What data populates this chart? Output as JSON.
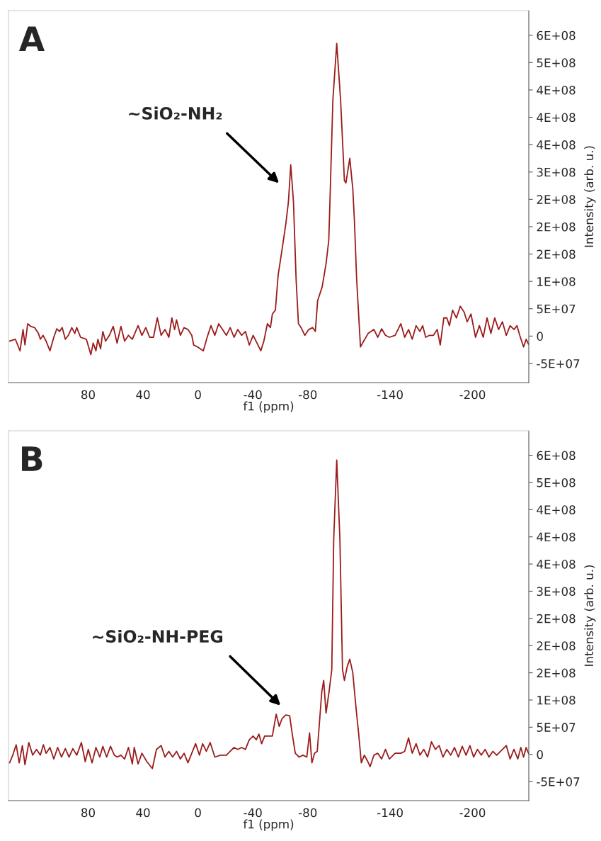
{
  "chart_data": [
    {
      "type": "line",
      "title": "A",
      "xlabel": "f1 (ppm)",
      "ylabel": "Intensity (arb. u.)",
      "grid": false,
      "xlim": [
        138,
        -241
      ],
      "xticks": [
        80,
        40,
        0,
        -40,
        -80,
        -140,
        -200
      ],
      "ylim": [
        -85000000.0,
        595000000.0
      ],
      "yticks": [
        {
          "value": -50000000.0,
          "label": "-5E+07"
        },
        0,
        {
          "value": 50000000.0,
          "label": "5E+07"
        },
        {
          "value": 100000000.0,
          "label": "1E+08"
        },
        {
          "value": 150000000.0,
          "label": "2E+08"
        },
        {
          "value": 200000000.0,
          "label": "2E+08"
        },
        {
          "value": 250000000.0,
          "label": "2E+08"
        },
        {
          "value": 300000000.0,
          "label": "3E+08"
        },
        {
          "value": 350000000.0,
          "label": "4E+08"
        },
        {
          "value": 400000000.0,
          "label": "4E+08"
        },
        {
          "value": 450000000.0,
          "label": "4E+08"
        },
        {
          "value": 500000000.0,
          "label": "5E+08"
        },
        {
          "value": 550000000.0,
          "label": "6E+08"
        }
      ],
      "annotations": [
        "~SiO₂-NH₂"
      ],
      "series": [
        {
          "color": "#9b1c1c",
          "x": [
            137.2,
            133,
            129.6,
            127.4,
            126,
            124,
            121.8,
            119,
            116.2,
            114.8,
            112.8,
            110.6,
            107.8,
            105,
            102.8,
            100.8,
            98.9,
            96.6,
            94.4,
            91.9,
            89.7,
            88.3,
            85.5,
            81.3,
            78,
            76.3,
            74.3,
            72.9,
            70.9,
            69.3,
            67.3,
            64.5,
            61.7,
            58.9,
            56.1,
            53.4,
            50.6,
            47.8,
            43.6,
            40.8,
            38,
            35.2,
            32.4,
            29.6,
            26.8,
            24,
            21.2,
            19,
            17,
            15.6,
            12.8,
            10.1,
            7.3,
            4.5,
            3.1,
            0.3,
            -1.7,
            -3.9,
            -6.7,
            -9.5,
            -12.3,
            -15.1,
            -17.9,
            -20.7,
            -23.5,
            -26.3,
            -29,
            -31.8,
            -34.6,
            -37.4,
            -40.2,
            -43,
            -45.8,
            -48,
            -50.6,
            -52.8,
            -54.2,
            -56.4,
            -58.4,
            -61.2,
            -64,
            -65.9,
            -67.6,
            -69.6,
            -71.5,
            -73.2,
            -75.1,
            -77.9,
            -80.7,
            -83.5,
            -85.5,
            -87.2,
            -90.5,
            -93.3,
            -95.3,
            -96.1,
            -98.3,
            -101.1,
            -103.9,
            -106.7,
            -107.8,
            -110.6,
            -112.8,
            -114,
            -115.6,
            -118.4,
            -120.7,
            -124,
            -128.2,
            -131,
            -133.8,
            -136.6,
            -139.4,
            -143.6,
            -147.8,
            -150.6,
            -153.4,
            -156.1,
            -158.9,
            -161.7,
            -163.7,
            -165.9,
            -168.7,
            -171.5,
            -174.3,
            -176.5,
            -179.1,
            -181.3,
            -183.2,
            -185.5,
            -188.3,
            -191.1,
            -193.9,
            -196.1,
            -198.9,
            -202.2,
            -205,
            -207.8,
            -210.6,
            -213.4,
            -216.2,
            -219,
            -221.8,
            -224.6,
            -227.4,
            -230.2,
            -232.4,
            -234.4,
            -237.2,
            -239.1,
            -240.8
          ],
          "values": [
            -9200000.0,
            -5700000.0,
            -26900000.0,
            12000000.0,
            -16300000.0,
            22600000.0,
            17700000.0,
            15600000.0,
            4900000.0,
            -5700000.0,
            1400000.0,
            -9200000.0,
            -26900000.0,
            -2100000.0,
            13400000.0,
            8500000.0,
            15600000.0,
            -5700000.0,
            1400000.0,
            15600000.0,
            4900000.0,
            15600000.0,
            -2100000.0,
            -5700000.0,
            -33900000.0,
            -12700000.0,
            -26900000.0,
            -5700000.0,
            -23300000.0,
            8500000.0,
            -9200000.0,
            1400000.0,
            17700000.0,
            -12700000.0,
            17700000.0,
            -9200000.0,
            1400000.0,
            -5700000.0,
            19100000.0,
            1400000.0,
            15600000.0,
            -2100000.0,
            -2100000.0,
            33200000.0,
            1400000.0,
            12000000.0,
            -2100000.0,
            33200000.0,
            12000000.0,
            29700000.0,
            1400000.0,
            15600000.0,
            12000000.0,
            1400000.0,
            -16300000.0,
            -19800000.0,
            -23300000.0,
            -26900000.0,
            -2100000.0,
            19100000.0,
            1400000.0,
            22600000.0,
            12000000.0,
            1400000.0,
            15600000.0,
            -2100000.0,
            12000000.0,
            1400000.0,
            8500000.0,
            -16300000.0,
            1400000.0,
            -12700000.0,
            -26900000.0,
            -9200000.0,
            22600000.0,
            15600000.0,
            40300000.0,
            47400000.0,
            111000000.0,
            157000000.0,
            205000000.0,
            245000000.0,
            313000000.0,
            245000000.0,
            104000000.0,
            22600000.0,
            15600000.0,
            1400000.0,
            12000000.0,
            15600000.0,
            8500000.0,
            65000000.0,
            90000000.0,
            132000000.0,
            175000000.0,
            241000000.0,
            432000000.0,
            535000000.0,
            432000000.0,
            284000000.0,
            280000000.0,
            325000000.0,
            269000000.0,
            210000000.0,
            104000000.0,
            -19800000.0,
            -9200000.0,
            4900000.0,
            12000000.0,
            -2100000.0,
            13400000.0,
            1400000.0,
            -2100000.0,
            1400000.0,
            22600000.0,
            -2100000.0,
            12000000.0,
            -5700000.0,
            19100000.0,
            8500000.0,
            19100000.0,
            -2100000.0,
            1400000.0,
            1400000.0,
            12000000.0,
            -16300000.0,
            33200000.0,
            33200000.0,
            19100000.0,
            47400000.0,
            33200000.0,
            54500000.0,
            43800000.0,
            26200000.0,
            40300000.0,
            -2100000.0,
            19100000.0,
            -2100000.0,
            33200000.0,
            4900000.0,
            33200000.0,
            12000000.0,
            26200000.0,
            1400000.0,
            19100000.0,
            12000000.0,
            19100000.0,
            1400000.0,
            -19800000.0,
            -5700000.0,
            -14800000.0
          ]
        }
      ]
    },
    {
      "type": "line",
      "title": "B",
      "xlabel": "f1 (ppm)",
      "ylabel": "Intensity (arb. u.)",
      "grid": false,
      "xlim": [
        138,
        -241
      ],
      "xticks": [
        80,
        40,
        0,
        -40,
        -80,
        -140,
        -200
      ],
      "ylim": [
        -85000000.0,
        595000000.0
      ],
      "yticks": [
        {
          "value": -50000000.0,
          "label": "-5E+07"
        },
        0,
        {
          "value": 50000000.0,
          "label": "5E+07"
        },
        {
          "value": 100000000.0,
          "label": "1E+08"
        },
        {
          "value": 150000000.0,
          "label": "2E+08"
        },
        {
          "value": 200000000.0,
          "label": "2E+08"
        },
        {
          "value": 250000000.0,
          "label": "2E+08"
        },
        {
          "value": 300000000.0,
          "label": "3E+08"
        },
        {
          "value": 350000000.0,
          "label": "4E+08"
        },
        {
          "value": 400000000.0,
          "label": "4E+08"
        },
        {
          "value": 450000000.0,
          "label": "4E+08"
        },
        {
          "value": 500000000.0,
          "label": "5E+08"
        },
        {
          "value": 550000000.0,
          "label": "6E+08"
        }
      ],
      "annotations": [
        "~SiO₂-NH-PEG"
      ],
      "series": [
        {
          "color": "#9b1c1c",
          "x": [
            137.2,
            134.9,
            132.4,
            130.2,
            127.9,
            126,
            123.2,
            120.4,
            117.6,
            114.8,
            112.6,
            110.6,
            107.8,
            105,
            102.2,
            99.4,
            96.6,
            93.9,
            91.1,
            88.3,
            84.9,
            82.1,
            79.9,
            77.1,
            74.3,
            71.5,
            69.3,
            66.5,
            63.7,
            60.9,
            58.9,
            56.1,
            53.4,
            50.6,
            47.8,
            46.4,
            43.6,
            40.8,
            37.2,
            33.2,
            30.2,
            26.8,
            24,
            21.2,
            18.4,
            15.6,
            12.8,
            10.1,
            7.3,
            4.5,
            1.7,
            -1.1,
            -3.4,
            -6.1,
            -8.9,
            -12.3,
            -16.5,
            -20.7,
            -23.5,
            -26.3,
            -29,
            -31.8,
            -34.6,
            -37.4,
            -40.2,
            -42.5,
            -44.4,
            -46.4,
            -48.6,
            -51.4,
            -54.2,
            -57,
            -59.2,
            -61.2,
            -64,
            -66.8,
            -68.7,
            -70.9,
            -73.7,
            -76.5,
            -79.3,
            -81.3,
            -83,
            -84.9,
            -86.9,
            -88.3,
            -90.2,
            -91.6,
            -93.3,
            -95.5,
            -97.5,
            -98.9,
            -101.1,
            -103.4,
            -105.3,
            -106.7,
            -108.7,
            -110.6,
            -112.8,
            -115.1,
            -117.1,
            -119,
            -121.2,
            -123.5,
            -125.4,
            -128.2,
            -131,
            -133.8,
            -136.6,
            -139.4,
            -143.6,
            -147.8,
            -150.6,
            -153.4,
            -156.1,
            -158.9,
            -161.7,
            -164.5,
            -167.3,
            -170.1,
            -172.9,
            -175.7,
            -178.5,
            -181.3,
            -184.1,
            -186.9,
            -189.7,
            -192.5,
            -195.3,
            -198.1,
            -200.8,
            -203.6,
            -206.4,
            -209.2,
            -212,
            -214.8,
            -217.6,
            -220.4,
            -224.6,
            -227.4,
            -230.2,
            -233,
            -235.2,
            -237.2,
            -239.1,
            -240.8
          ],
          "values": [
            -15500000.0,
            -1400000.0,
            17600000.0,
            -15500000.0,
            16200000.0,
            -19000000.0,
            21800000.0,
            -1400000.0,
            9200000.0,
            -1400000.0,
            17600000.0,
            2100000.0,
            12700000.0,
            -8500000.0,
            12700000.0,
            -4900000.0,
            10600000.0,
            -4900000.0,
            10600000.0,
            -1400000.0,
            21800000.0,
            -13400000.0,
            9200000.0,
            -15500000.0,
            12700000.0,
            -4900000.0,
            14800000.0,
            -4900000.0,
            14800000.0,
            -1400000.0,
            -4900000.0,
            -1400000.0,
            -8500000.0,
            12700000.0,
            -17600000.0,
            12700000.0,
            -17600000.0,
            2100000.0,
            -13400000.0,
            -26100000.0,
            9200000.0,
            16200000.0,
            -4900000.0,
            5600000.0,
            -4900000.0,
            5600000.0,
            -8500000.0,
            2100000.0,
            -15500000.0,
            2100000.0,
            19700000.0,
            -1400000.0,
            19700000.0,
            5600000.0,
            21800000.0,
            -4900000.0,
            -1400000.0,
            -1400000.0,
            5600000.0,
            12700000.0,
            9200000.0,
            12700000.0,
            9200000.0,
            26800000.0,
            33800000.0,
            26800000.0,
            37300000.0,
            19700000.0,
            33800000.0,
            33800000.0,
            33800000.0,
            73900000.0,
            51400000.0,
            65500000.0,
            72500000.0,
            71100000.0,
            37300000.0,
            2100000.0,
            -4900000.0,
            -1400000.0,
            -4900000.0,
            39400000.0,
            -15500000.0,
            2100000.0,
            5600000.0,
            51400000.0,
            115000000.0,
            136000000.0,
            76000000.0,
            115000000.0,
            156000000.0,
            396000000.0,
            541000000.0,
            396000000.0,
            156000000.0,
            136000000.0,
            161000000.0,
            175000000.0,
            150000000.0,
            86600000.0,
            37300000.0,
            -15500000.0,
            -1400000.0,
            -12000000.0,
            -22500000.0,
            -1400000.0,
            2100000.0,
            -8500000.0,
            9200000.0,
            -8500000.0,
            2100000.0,
            2100000.0,
            5600000.0,
            30300000.0,
            2100000.0,
            19700000.0,
            -1400000.0,
            9200000.0,
            -4900000.0,
            23200000.0,
            9200000.0,
            16200000.0,
            -4900000.0,
            9200000.0,
            -1400000.0,
            12700000.0,
            -4900000.0,
            14800000.0,
            -1400000.0,
            16200000.0,
            -4900000.0,
            9200000.0,
            -1400000.0,
            9200000.0,
            -4900000.0,
            5600000.0,
            -1400000.0,
            5600000.0,
            16200000.0,
            -8500000.0,
            9200000.0,
            -8500000.0,
            12700000.0,
            -4900000.0,
            12700000.0,
            2100000.0
          ]
        }
      ]
    }
  ]
}
